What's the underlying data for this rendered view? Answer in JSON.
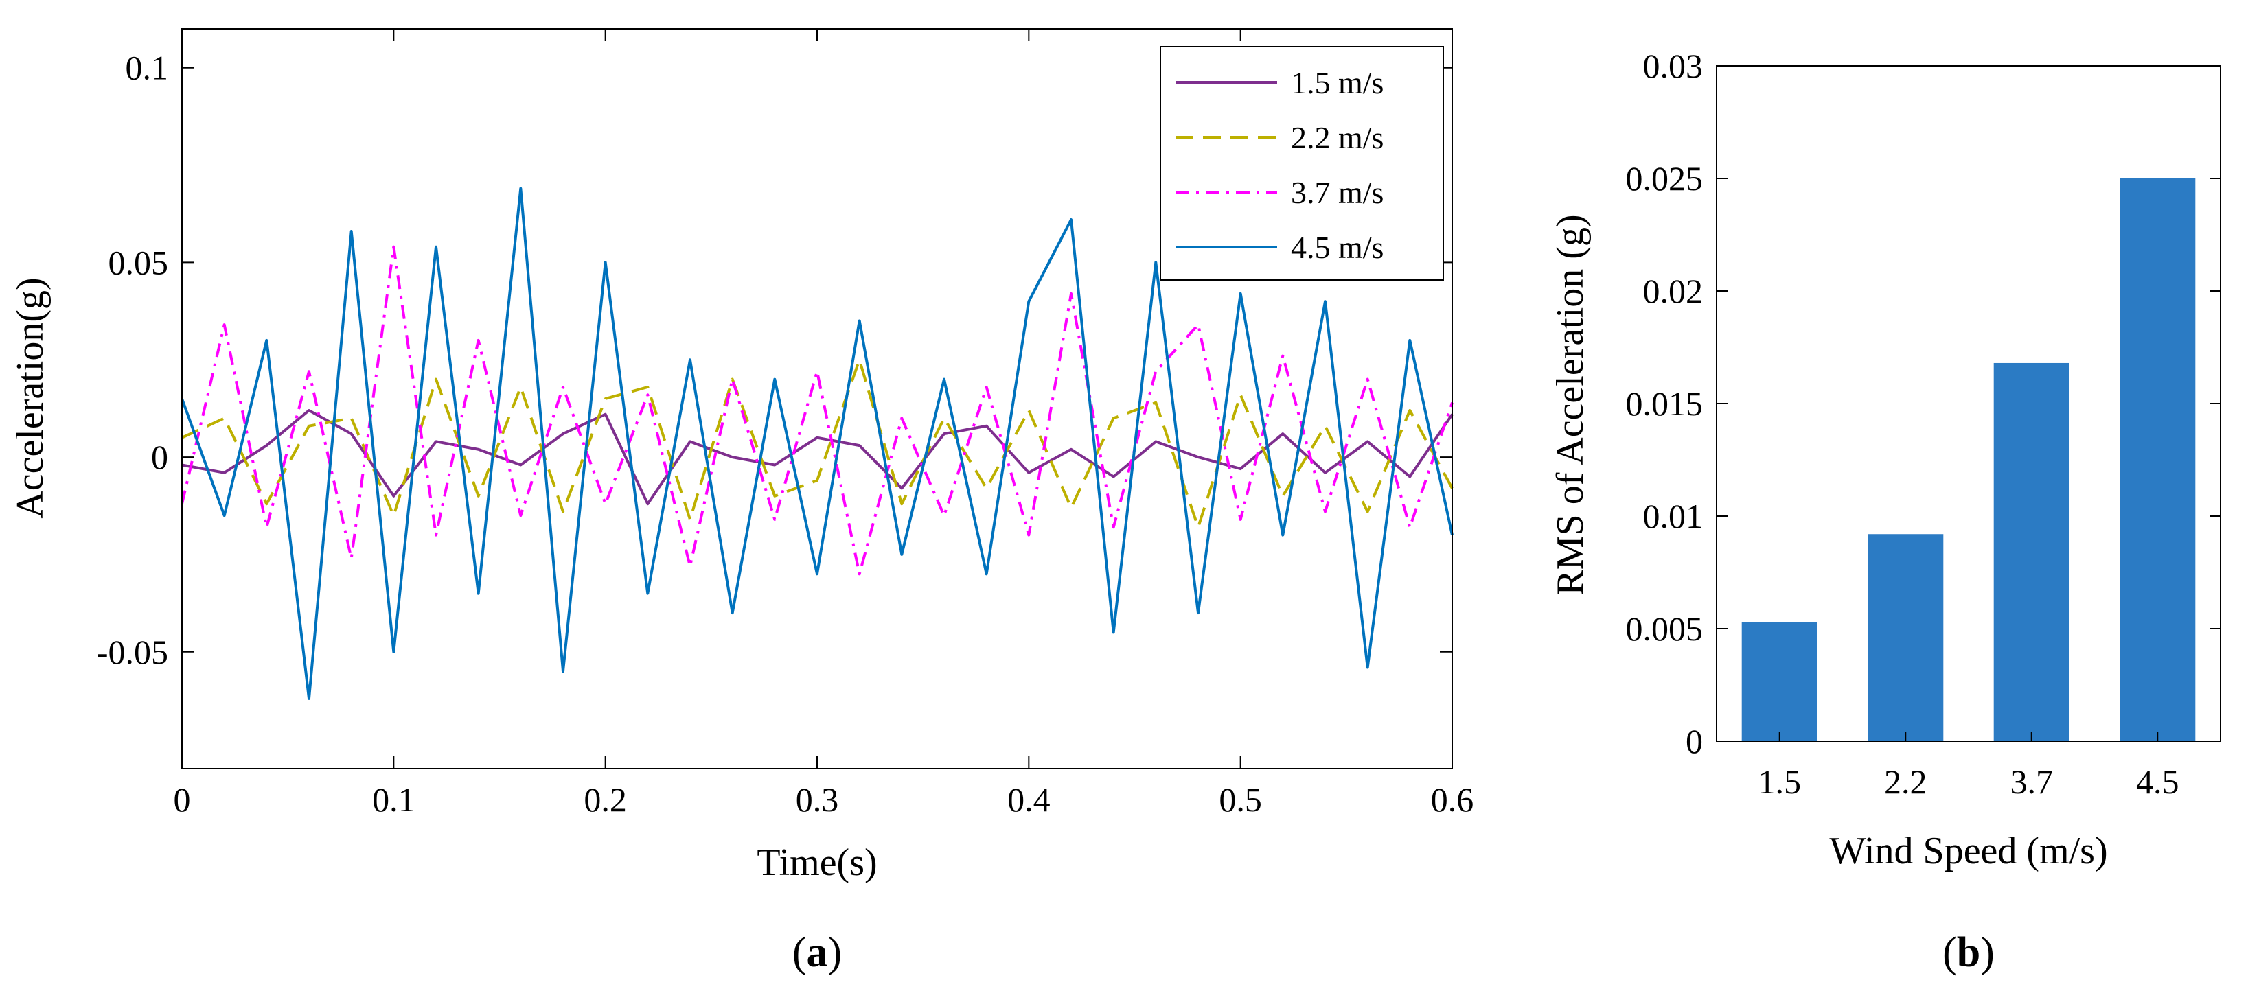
{
  "chart_data": [
    {
      "panel": "a",
      "caption": "a",
      "type": "line",
      "xlabel": "Time(s)",
      "ylabel": "Acceleration(g)",
      "xlim": [
        0,
        0.6
      ],
      "ylim": [
        -0.08,
        0.11
      ],
      "xticks": [
        0,
        0.1,
        0.2,
        0.3,
        0.4,
        0.5,
        0.6
      ],
      "xtick_labels": [
        "0",
        "0.1",
        "0.2",
        "0.3",
        "0.4",
        "0.5",
        "0.6"
      ],
      "yticks": [
        -0.05,
        0,
        0.05,
        0.1
      ],
      "ytick_labels": [
        "-0.05",
        "0",
        "0.05",
        "0.1"
      ],
      "grid": false,
      "legend_position": "top-right",
      "series": [
        {
          "name": "1.5 m/s",
          "color": "#7E2F8E",
          "dash": "solid",
          "x": [
            0,
            0.02,
            0.04,
            0.06,
            0.08,
            0.1,
            0.12,
            0.14,
            0.16,
            0.18,
            0.2,
            0.22,
            0.24,
            0.26,
            0.28,
            0.3,
            0.32,
            0.34,
            0.36,
            0.38,
            0.4,
            0.42,
            0.44,
            0.46,
            0.48,
            0.5,
            0.52,
            0.54,
            0.56,
            0.58,
            0.6
          ],
          "y": [
            -0.002,
            -0.004,
            0.003,
            0.012,
            0.006,
            -0.01,
            0.004,
            0.002,
            -0.002,
            0.006,
            0.011,
            -0.012,
            0.004,
            0.0,
            -0.002,
            0.005,
            0.003,
            -0.008,
            0.006,
            0.008,
            -0.004,
            0.002,
            -0.005,
            0.004,
            0.0,
            -0.003,
            0.006,
            -0.004,
            0.004,
            -0.005,
            0.011
          ]
        },
        {
          "name": "2.2 m/s",
          "color": "#BDB000",
          "dash": "long-dash",
          "x": [
            0,
            0.02,
            0.04,
            0.06,
            0.08,
            0.1,
            0.12,
            0.14,
            0.16,
            0.18,
            0.2,
            0.22,
            0.24,
            0.26,
            0.28,
            0.3,
            0.32,
            0.34,
            0.36,
            0.38,
            0.4,
            0.42,
            0.44,
            0.46,
            0.48,
            0.5,
            0.52,
            0.54,
            0.56,
            0.58,
            0.6
          ],
          "y": [
            0.005,
            0.01,
            -0.012,
            0.008,
            0.01,
            -0.015,
            0.02,
            -0.01,
            0.018,
            -0.014,
            0.015,
            0.018,
            -0.016,
            0.02,
            -0.01,
            -0.006,
            0.025,
            -0.012,
            0.01,
            -0.008,
            0.012,
            -0.013,
            0.01,
            0.014,
            -0.018,
            0.016,
            -0.01,
            0.008,
            -0.014,
            0.012,
            -0.008
          ]
        },
        {
          "name": "3.7 m/s",
          "color": "#FF00FF",
          "dash": "dash-dot",
          "x": [
            0,
            0.02,
            0.04,
            0.06,
            0.08,
            0.1,
            0.12,
            0.14,
            0.16,
            0.18,
            0.2,
            0.22,
            0.24,
            0.26,
            0.28,
            0.3,
            0.32,
            0.34,
            0.36,
            0.38,
            0.4,
            0.42,
            0.44,
            0.46,
            0.48,
            0.5,
            0.52,
            0.54,
            0.56,
            0.58,
            0.6
          ],
          "y": [
            -0.012,
            0.034,
            -0.018,
            0.022,
            -0.026,
            0.054,
            -0.02,
            0.03,
            -0.015,
            0.018,
            -0.012,
            0.016,
            -0.028,
            0.02,
            -0.016,
            0.022,
            -0.03,
            0.01,
            -0.015,
            0.018,
            -0.02,
            0.042,
            -0.018,
            0.022,
            0.034,
            -0.016,
            0.026,
            -0.014,
            0.02,
            -0.018,
            0.014
          ]
        },
        {
          "name": "4.5 m/s",
          "color": "#0072BD",
          "dash": "solid",
          "x": [
            0,
            0.02,
            0.04,
            0.06,
            0.08,
            0.1,
            0.12,
            0.14,
            0.16,
            0.18,
            0.2,
            0.22,
            0.24,
            0.26,
            0.28,
            0.3,
            0.32,
            0.34,
            0.36,
            0.38,
            0.4,
            0.42,
            0.44,
            0.46,
            0.48,
            0.5,
            0.52,
            0.54,
            0.56,
            0.58,
            0.6
          ],
          "y": [
            0.015,
            -0.015,
            0.03,
            -0.062,
            0.058,
            -0.05,
            0.054,
            -0.035,
            0.069,
            -0.055,
            0.05,
            -0.035,
            0.025,
            -0.04,
            0.02,
            -0.03,
            0.035,
            -0.025,
            0.02,
            -0.03,
            0.04,
            0.061,
            -0.045,
            0.05,
            -0.04,
            0.042,
            -0.02,
            0.04,
            -0.054,
            0.03,
            -0.02
          ]
        }
      ]
    },
    {
      "panel": "b",
      "caption": "b",
      "type": "bar",
      "xlabel": "Wind Speed (m/s)",
      "ylabel": "RMS of Acceleration (g)",
      "categories": [
        "1.5",
        "2.2",
        "3.7",
        "4.5"
      ],
      "values": [
        0.0053,
        0.0092,
        0.0168,
        0.025
      ],
      "ylim": [
        0,
        0.03
      ],
      "yticks": [
        0,
        0.005,
        0.01,
        0.015,
        0.02,
        0.025,
        0.03
      ],
      "ytick_labels": [
        "0",
        "0.005",
        "0.01",
        "0.015",
        "0.02",
        "0.025",
        "0.03"
      ],
      "grid": false,
      "bar_color": "#2B7BC4"
    }
  ]
}
